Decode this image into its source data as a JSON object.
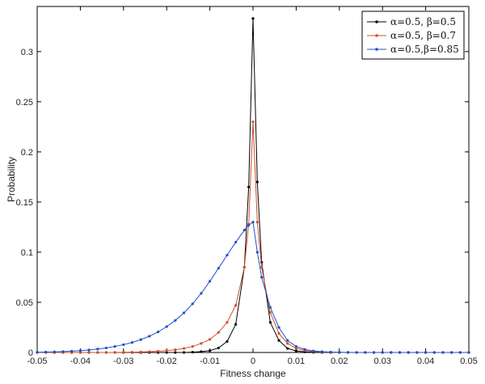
{
  "chart_data": {
    "type": "line",
    "xlabel": "Fitness change",
    "ylabel": "Probability",
    "xlim": [
      -0.05,
      0.05
    ],
    "ylim": [
      0,
      0.345
    ],
    "grid": false,
    "legend_position": "top-right",
    "x_ticks": [
      "-0.05",
      "-0.04",
      "-0.03",
      "-0.02",
      "-0.01",
      "0",
      "0.01",
      "0.02",
      "0.03",
      "0.04",
      "0.05"
    ],
    "y_ticks": [
      "0",
      "0.05",
      "0.1",
      "0.15",
      "0.2",
      "0.25",
      "0.3"
    ],
    "x": [
      -0.05,
      -0.048,
      -0.046,
      -0.044,
      -0.042,
      -0.04,
      -0.038,
      -0.036,
      -0.034,
      -0.032,
      -0.03,
      -0.028,
      -0.026,
      -0.024,
      -0.022,
      -0.02,
      -0.018,
      -0.016,
      -0.014,
      -0.012,
      -0.01,
      -0.008,
      -0.006,
      -0.004,
      -0.002,
      -0.001,
      0,
      0.001,
      0.002,
      0.004,
      0.006,
      0.008,
      0.01,
      0.012,
      0.014,
      0.016,
      0.018,
      0.02,
      0.022,
      0.024,
      0.026,
      0.028,
      0.03,
      0.032,
      0.034,
      0.036,
      0.038,
      0.04,
      0.042,
      0.044,
      0.046,
      0.048,
      0.05
    ],
    "series": [
      {
        "name": "α=0.5, β=0.5",
        "color": "#000000",
        "values": [
          0,
          0,
          0,
          0,
          0,
          0,
          0,
          0,
          0,
          0,
          0,
          0,
          0,
          0,
          0,
          0,
          0,
          0,
          0.0003,
          0.0008,
          0.0018,
          0.0045,
          0.011,
          0.028,
          0.085,
          0.165,
          0.333,
          0.17,
          0.09,
          0.03,
          0.012,
          0.004,
          0.0015,
          0.0006,
          0.0002,
          0,
          0,
          0,
          0,
          0,
          0,
          0,
          0,
          0,
          0,
          0,
          0,
          0,
          0,
          0,
          0,
          0,
          0
        ]
      },
      {
        "name": "α=0.5, β=0.7",
        "color": "#d0502a",
        "values": [
          0,
          0,
          0,
          0,
          0,
          0,
          0,
          0,
          0,
          0,
          0.0002,
          0.0003,
          0.0005,
          0.0008,
          0.0012,
          0.0018,
          0.0027,
          0.004,
          0.006,
          0.009,
          0.013,
          0.02,
          0.03,
          0.047,
          0.085,
          0.128,
          0.23,
          0.13,
          0.085,
          0.04,
          0.019,
          0.009,
          0.004,
          0.002,
          0.001,
          0.0005,
          0.0002,
          0,
          0,
          0,
          0,
          0,
          0,
          0,
          0,
          0,
          0,
          0,
          0,
          0,
          0,
          0,
          0
        ]
      },
      {
        "name": "α=0.5,β=0.85",
        "color": "#2050c8",
        "values": [
          0.0002,
          0.0004,
          0.0006,
          0.0009,
          0.0013,
          0.0018,
          0.0025,
          0.0034,
          0.0045,
          0.006,
          0.0078,
          0.01,
          0.0128,
          0.0162,
          0.0205,
          0.0258,
          0.032,
          0.0395,
          0.0485,
          0.059,
          0.071,
          0.084,
          0.097,
          0.11,
          0.122,
          0.127,
          0.13,
          0.1,
          0.075,
          0.045,
          0.025,
          0.012,
          0.006,
          0.003,
          0.0015,
          0.0008,
          0.0004,
          0.0002,
          0.0001,
          0,
          0,
          0,
          0,
          0,
          0,
          0,
          0,
          0,
          0,
          0,
          0,
          0,
          0
        ]
      }
    ]
  }
}
